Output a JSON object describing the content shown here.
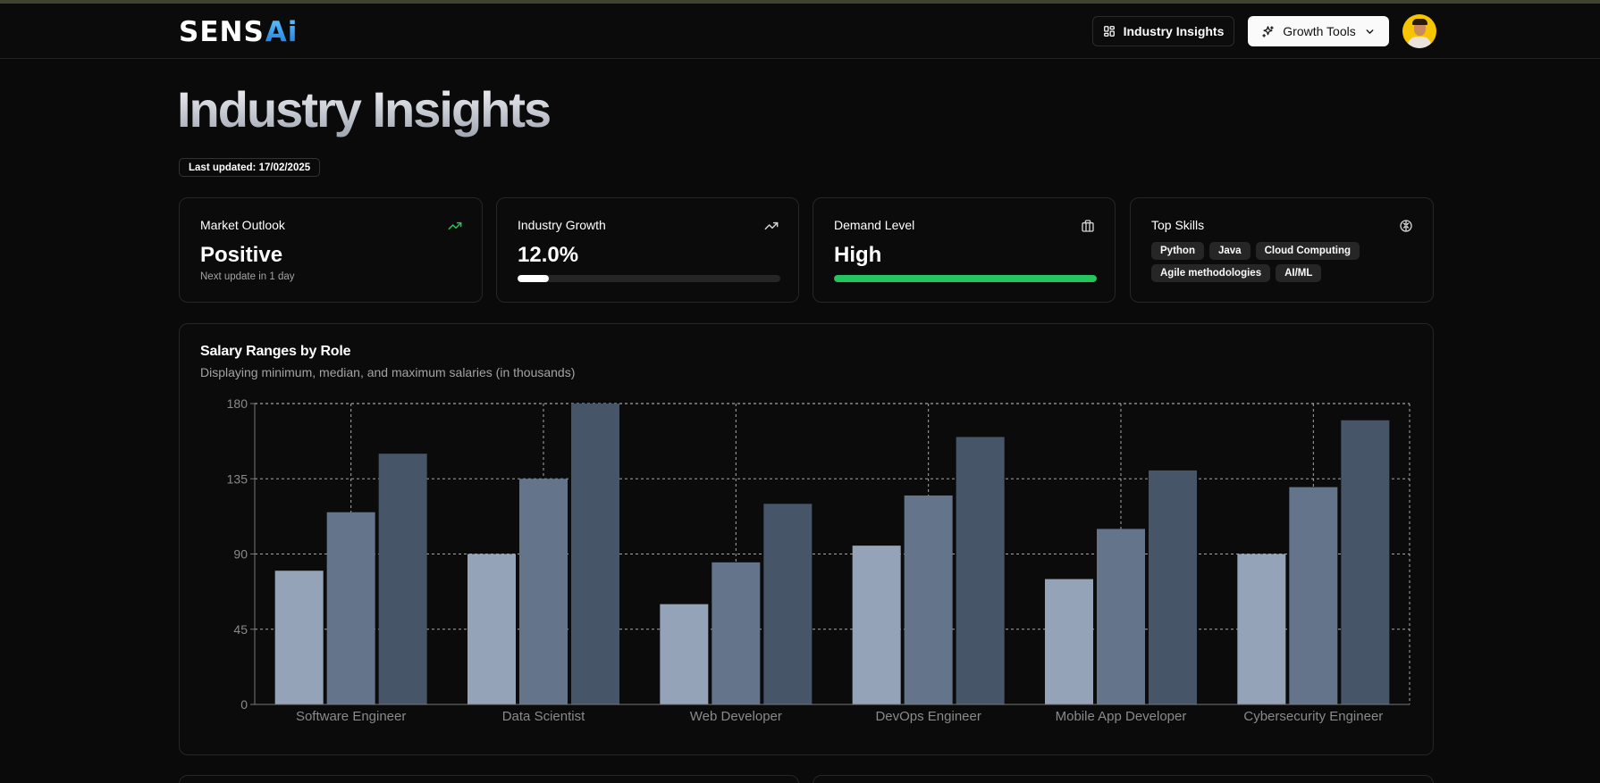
{
  "app": {
    "logo_text": "SENS",
    "logo_accent": "Ai"
  },
  "nav": {
    "industry_insights_label": "Industry Insights",
    "growth_tools_label": "Growth Tools"
  },
  "page": {
    "title": "Industry Insights",
    "last_updated": "Last updated: 17/02/2025"
  },
  "cards": {
    "market_outlook": {
      "title": "Market Outlook",
      "value": "Positive",
      "sub": "Next update in 1 day",
      "icon": "trending-up-icon",
      "icon_color": "#22c55e"
    },
    "industry_growth": {
      "title": "Industry Growth",
      "value": "12.0%",
      "progress": 0.12,
      "icon": "trending-up-icon",
      "bar_color": "#ffffff"
    },
    "demand_level": {
      "title": "Demand Level",
      "value": "High",
      "progress": 1.0,
      "icon": "briefcase-icon",
      "bar_color": "#22c55e"
    },
    "top_skills": {
      "title": "Top Skills",
      "icon": "brain-icon",
      "skills": [
        "Python",
        "Java",
        "Cloud Computing",
        "Agile methodologies",
        "AI/ML"
      ]
    }
  },
  "salary_chart": {
    "title": "Salary Ranges by Role",
    "subtitle": "Displaying minimum, median, and maximum salaries (in thousands)"
  },
  "chart_data": {
    "type": "bar",
    "categories": [
      "Software Engineer",
      "Data Scientist",
      "Web Developer",
      "DevOps Engineer",
      "Mobile App Developer",
      "Cybersecurity Engineer"
    ],
    "series": [
      {
        "values": [
          80,
          90,
          60,
          95,
          75,
          90
        ],
        "color": "#94a3b8"
      },
      {
        "values": [
          115,
          135,
          85,
          125,
          105,
          130
        ],
        "color": "#64748b"
      },
      {
        "values": [
          150,
          180,
          120,
          160,
          140,
          170
        ],
        "color": "#475569"
      }
    ],
    "yticks": [
      0,
      45,
      90,
      135,
      180
    ],
    "ylim": [
      0,
      180
    ],
    "grid": true
  }
}
